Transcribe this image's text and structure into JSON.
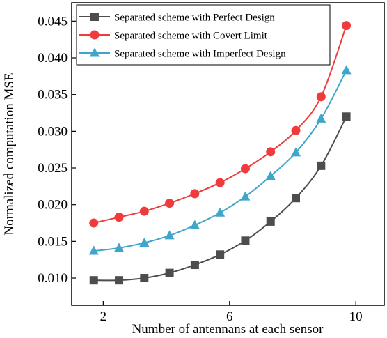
{
  "chart_data": {
    "type": "line",
    "title": "",
    "xlabel": "Number of antennans at each sensor",
    "ylabel": "Normalized computation MSE",
    "xlim": [
      1.0,
      10.9
    ],
    "ylim": [
      0.0063,
      0.0475
    ],
    "x_ticks": [
      2,
      6,
      10
    ],
    "x_tick_labels": [
      "2",
      "6",
      "10"
    ],
    "y_ticks": [
      0.01,
      0.015,
      0.02,
      0.025,
      0.03,
      0.035,
      0.04,
      0.045
    ],
    "y_tick_labels": [
      "0.010",
      "0.015",
      "0.020",
      "0.025",
      "0.030",
      "0.035",
      "0.040",
      "0.045"
    ],
    "grid": false,
    "legend_position": "top-left",
    "x": [
      1.7,
      2.5,
      3.3,
      4.1,
      4.9,
      5.7,
      6.5,
      7.3,
      8.1,
      8.9,
      9.7
    ],
    "series": [
      {
        "name": "Separated scheme with Perfect Design",
        "color": "#4d4d4d",
        "marker": "square",
        "values": [
          0.0097,
          0.0097,
          0.01,
          0.0107,
          0.0118,
          0.0132,
          0.0151,
          0.0177,
          0.0209,
          0.0253,
          0.032
        ]
      },
      {
        "name": "Separated scheme with Covert Limit",
        "color": "#ef3b3b",
        "marker": "circle",
        "values": [
          0.0175,
          0.0183,
          0.0191,
          0.0202,
          0.0215,
          0.023,
          0.0249,
          0.0272,
          0.0301,
          0.0347,
          0.0444
        ]
      },
      {
        "name": "Separated scheme with Imperfect Design",
        "color": "#3fa6c9",
        "marker": "triangle",
        "values": [
          0.0137,
          0.0141,
          0.0148,
          0.0158,
          0.0172,
          0.0189,
          0.0211,
          0.0239,
          0.0271,
          0.0317,
          0.0383
        ]
      }
    ]
  }
}
